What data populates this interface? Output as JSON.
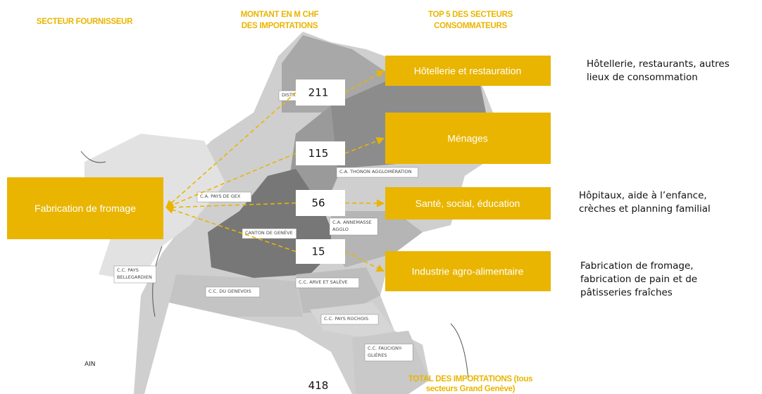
{
  "headers": {
    "supplier": "SECTEUR FOURNISSEUR",
    "amount": [
      "MONTANT EN M CHF",
      "DES IMPORTATIONS"
    ],
    "consumers": [
      "TOP 5 DES SECTEURS",
      "CONSOMMATEURS"
    ]
  },
  "source": "Fabrication de fromage",
  "flows": [
    {
      "amount": 211,
      "target": "Hôtellerie et restauration",
      "description": [
        "Hôtellerie, restaurants, autres",
        "lieux de consommation"
      ]
    },
    {
      "amount": 115,
      "target": "Ménages",
      "description": []
    },
    {
      "amount": 56,
      "target": "Santé, social, éducation",
      "description": [
        "Hôpitaux, aide à l’enfance,",
        "crèches et planning familial"
      ]
    },
    {
      "amount": 15,
      "target": "Industrie agro-alimentaire",
      "description": [
        "Fabrication de fromage,",
        "fabrication de pain et de",
        "pâtisseries fraîches"
      ]
    }
  ],
  "total": {
    "value": 418,
    "label": [
      "TOTAL DES IMPORTATIONS (tous",
      "secteurs Grand Genève)"
    ]
  },
  "map_labels": [
    [
      "DISTRICT DE NYON"
    ],
    [
      "C.A. THONON AGGLOMÉRATION"
    ],
    [
      "C.A. PAYS DE GEX"
    ],
    [
      "CANTON DE GENÈVE"
    ],
    [
      "C.A. ANNEMASSE",
      "AGGLO"
    ],
    [
      "C.C. PAYS",
      "BELLEGARDIEN"
    ],
    [
      "C.C. DU GENEVOIS"
    ],
    [
      "C.C. ARVE ET SALÈVE"
    ],
    [
      "C.C. PAYS ROCHOIS"
    ],
    [
      "C.C. FAUCIGNY-",
      "GLIÈRES"
    ],
    [
      "AIN"
    ]
  ]
}
